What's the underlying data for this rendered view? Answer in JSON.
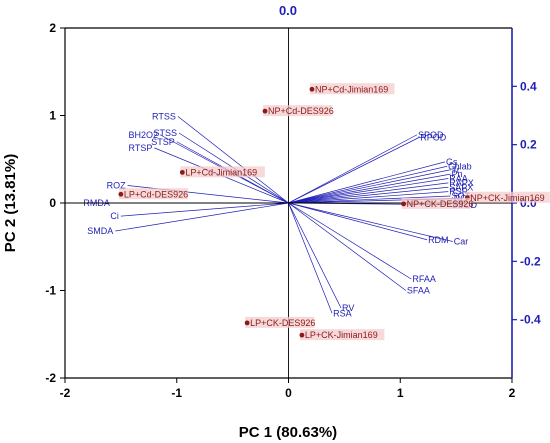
{
  "chart_data": {
    "type": "scatter",
    "subtype": "pca-biplot",
    "xlabel": "PC 1 (80.63%)",
    "ylabel": "PC 2 (13.81%)",
    "top_axis_label": "0.0",
    "xlim": [
      -2,
      2
    ],
    "ylim": [
      -2,
      2
    ],
    "x_ticks": [
      "-2",
      "-1",
      "0",
      "1",
      "2"
    ],
    "y_ticks": [
      "-2",
      "-1",
      "0",
      "1",
      "2"
    ],
    "loading_lim": [
      -0.6,
      0.6
    ],
    "loading_ticks": [
      "-0.4",
      "-0.2",
      "0.0",
      "0.2",
      "0.4"
    ],
    "colors": {
      "score_point": "#8b1a1a",
      "score_text": "#8b1a1a",
      "score_highlight": "#f4cccc",
      "vector": "#1f1fb4",
      "right_axis": "#1f1fb4",
      "frame": "#000000"
    },
    "scores": [
      {
        "label": "NP+Cd-Jimian169",
        "x": 0.21,
        "y": 1.3
      },
      {
        "label": "NP+Cd-DES926",
        "x": -0.21,
        "y": 1.05
      },
      {
        "label": "LP+Cd-Jimian169",
        "x": -0.95,
        "y": 0.35
      },
      {
        "label": "LP+Cd-DES926",
        "x": -1.5,
        "y": 0.1
      },
      {
        "label": "NP+CK-Jimian169",
        "x": 1.6,
        "y": 0.06
      },
      {
        "label": "NP+CK-DES926",
        "x": 1.03,
        "y": -0.01
      },
      {
        "label": "LP+CK-DES926",
        "x": -0.37,
        "y": -1.37
      },
      {
        "label": "LP+CK-Jimian169",
        "x": 0.12,
        "y": -1.51
      }
    ],
    "loadings": [
      {
        "label": "RTSS",
        "x": -0.99,
        "y": 0.99
      },
      {
        "label": "STSS",
        "x": -0.98,
        "y": 0.8
      },
      {
        "label": "BH2O2",
        "x": -1.15,
        "y": 0.78
      },
      {
        "label": "STSP",
        "x": -1.0,
        "y": 0.7
      },
      {
        "label": "RTSP",
        "x": -1.2,
        "y": 0.63
      },
      {
        "label": "ROZ",
        "x": -1.44,
        "y": 0.2
      },
      {
        "label": "RMDA",
        "x": -1.58,
        "y": 0.0
      },
      {
        "label": "Ci",
        "x": -1.5,
        "y": -0.15
      },
      {
        "label": "SMDA",
        "x": -1.55,
        "y": -0.32
      },
      {
        "label": "SPOD",
        "x": 1.15,
        "y": 0.78
      },
      {
        "label": "RPOD",
        "x": 1.17,
        "y": 0.75
      },
      {
        "label": "Gs",
        "x": 1.4,
        "y": 0.47
      },
      {
        "label": "Chlab",
        "x": 1.42,
        "y": 0.42
      },
      {
        "label": "Tr",
        "x": 1.45,
        "y": 0.38
      },
      {
        "label": "Pn",
        "x": 1.45,
        "y": 0.33
      },
      {
        "label": "RAA",
        "x": 1.43,
        "y": 0.28
      },
      {
        "label": "RAPX",
        "x": 1.43,
        "y": 0.23
      },
      {
        "label": "SAPX",
        "x": 1.43,
        "y": 0.18
      },
      {
        "label": "RSP",
        "x": 1.43,
        "y": 0.13
      },
      {
        "label": "SOT",
        "x": 1.45,
        "y": 0.08
      },
      {
        "label": "ROT",
        "x": 1.47,
        "y": 0.05
      },
      {
        "label": "SSOD",
        "x": 1.45,
        "y": -0.02
      },
      {
        "label": "RDM",
        "x": 1.24,
        "y": -0.42
      },
      {
        "label": "Car",
        "x": 1.47,
        "y": -0.44
      },
      {
        "label": "RFAA",
        "x": 1.1,
        "y": -0.87
      },
      {
        "label": "SFAA",
        "x": 1.05,
        "y": -1.0
      },
      {
        "label": "RV",
        "x": 0.47,
        "y": -1.2
      },
      {
        "label": "RSA",
        "x": 0.39,
        "y": -1.26
      }
    ]
  }
}
